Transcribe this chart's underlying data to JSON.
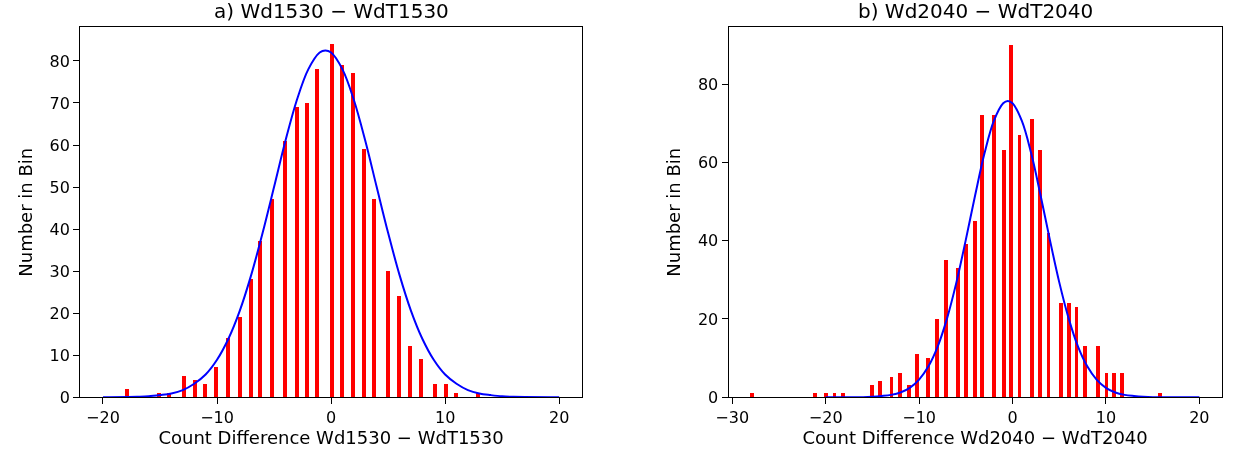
{
  "chart_data": [
    {
      "type": "bar",
      "title": "a) Wd1530 − WdT1530",
      "xlabel": "Count Difference Wd1530 − WdT1530",
      "ylabel": "Number in Bin",
      "xlim": [
        -22,
        22
      ],
      "xticks": [
        {
          "value": -20,
          "label": "−20"
        },
        {
          "value": -10,
          "label": "−10"
        },
        0,
        10,
        20
      ],
      "ylim": [
        0,
        88
      ],
      "yticks": [
        0,
        10,
        20,
        30,
        40,
        50,
        60,
        70,
        80
      ],
      "series": [
        {
          "color": "#ff0000",
          "x": [
            -17.9,
            -15.1,
            -14.2,
            -12.9,
            -11.9,
            -11.0,
            -10.1,
            -9.0,
            -8.0,
            -7.0,
            -6.2,
            -5.2,
            -4.0,
            -3.0,
            -2.1,
            -1.2,
            0.1,
            1.0,
            1.9,
            2.9,
            3.8,
            5.0,
            6.0,
            6.9,
            7.9,
            9.1,
            10.1,
            11.0,
            12.9
          ],
          "values": [
            2,
            1,
            1,
            5,
            4,
            3,
            7,
            14,
            19,
            28,
            37,
            47,
            61,
            69,
            70,
            78,
            84,
            79,
            77,
            59,
            47,
            30,
            24,
            12,
            9,
            3,
            3,
            1,
            1
          ]
        },
        {
          "type": "line",
          "color": "#0000ff",
          "x": [
            -20,
            -17,
            -16,
            -15,
            -14,
            -13,
            -12,
            -11,
            -10,
            -9,
            -8,
            -7,
            -6,
            -5,
            -4,
            -3,
            -2,
            -1,
            -0.5,
            0,
            1,
            2,
            3,
            4,
            5,
            6,
            7,
            8,
            9,
            10,
            11,
            12,
            13,
            14,
            15,
            16,
            20
          ],
          "values": [
            0,
            0.1,
            0.2,
            0.5,
            0.9,
            1.7,
            3.2,
            5.4,
            8.9,
            13.9,
            20.6,
            29.1,
            39.1,
            50.0,
            61.0,
            70.7,
            78.0,
            82.0,
            82.5,
            82.0,
            78.0,
            70.7,
            61.0,
            50.0,
            39.1,
            29.1,
            20.6,
            13.9,
            8.9,
            5.4,
            3.2,
            1.7,
            0.9,
            0.5,
            0.2,
            0.1,
            0
          ]
        }
      ]
    },
    {
      "type": "bar",
      "title": "b) Wd2040 − WdT2040",
      "xlabel": "Count Difference Wd2040 − WdT2040",
      "ylabel": "Number in Bin",
      "xlim": [
        -30.4,
        22.4
      ],
      "xticks": [
        {
          "value": -30,
          "label": "−30"
        },
        {
          "value": -20,
          "label": "−20"
        },
        {
          "value": -10,
          "label": "−10"
        },
        0,
        10,
        20
      ],
      "ylim": [
        0,
        94.5
      ],
      "yticks": [
        0,
        20,
        40,
        60,
        80
      ],
      "series": [
        {
          "color": "#ff0000",
          "x": [
            -27.9,
            -21.2,
            -20.0,
            -19.1,
            -18.2,
            -15.1,
            -14.2,
            -13.0,
            -12.1,
            -11.1,
            -10.3,
            -9.1,
            -8.1,
            -7.2,
            -5.9,
            -5.0,
            -4.1,
            -3.3,
            -2.0,
            -1.0,
            -0.2,
            0.7,
            2.0,
            2.9,
            3.8,
            5.1,
            6.0,
            6.8,
            7.7,
            9.1,
            10.0,
            10.8,
            11.7,
            15.7
          ],
          "values": [
            1,
            1,
            1,
            1,
            1,
            3,
            4,
            5,
            6,
            3,
            11,
            10,
            20,
            35,
            33,
            39,
            45,
            72,
            72,
            63,
            90,
            67,
            71,
            63,
            42,
            24,
            24,
            23,
            13,
            13,
            6,
            6,
            6,
            1
          ]
        },
        {
          "type": "line",
          "color": "#0000ff",
          "x": [
            -20,
            -16,
            -15,
            -14,
            -13,
            -12,
            -11,
            -10,
            -9,
            -8,
            -7,
            -6,
            -5,
            -4,
            -3,
            -2,
            -1,
            -0.5,
            0,
            1,
            2,
            3,
            4,
            5,
            6,
            7,
            8,
            9,
            10,
            11,
            12,
            13,
            14,
            15,
            20
          ],
          "values": [
            0,
            0,
            0.1,
            0.3,
            0.6,
            1.2,
            2.4,
            4.5,
            7.9,
            13.0,
            20.2,
            29.4,
            40.2,
            51.6,
            62.3,
            70.6,
            75.1,
            75.7,
            75.1,
            70.6,
            62.3,
            51.6,
            40.2,
            29.4,
            20.2,
            13.0,
            7.9,
            4.5,
            2.4,
            1.2,
            0.6,
            0.3,
            0.1,
            0,
            0
          ]
        }
      ]
    }
  ]
}
